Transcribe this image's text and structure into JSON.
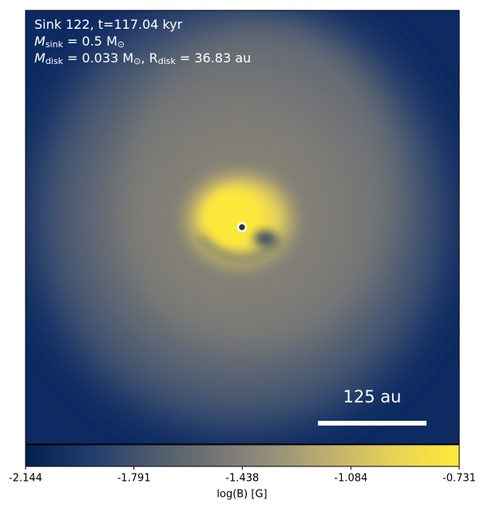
{
  "chart_data": {
    "type": "image",
    "annotations": [
      [
        {
          "t": "Sink 122, t=117.04 kyr"
        }
      ],
      [
        {
          "t": "M"
        },
        {
          "t": "sink",
          "sub": true
        },
        {
          "t": " = 0.5 M"
        },
        {
          "t": "⊙",
          "sub": true
        }
      ],
      [
        {
          "t": "M"
        },
        {
          "t": "disk",
          "sub": true
        },
        {
          "t": " = 0.033 M"
        },
        {
          "t": "⊙",
          "sub": true
        },
        {
          "t": ", R"
        },
        {
          "t": "disk",
          "sub": true
        },
        {
          "t": " = 36.83 au"
        }
      ]
    ],
    "scale_bar_label": "125 au",
    "colorbar": {
      "label": "log(B) [G]",
      "lim": [
        -2.144,
        -0.731
      ],
      "ticks": [
        -2.144,
        -1.791,
        -1.438,
        -1.084,
        -0.731
      ],
      "colors": [
        "#00204c",
        "#1f3b6e",
        "#4a5a6e",
        "#717274",
        "#97907a",
        "#c2b36d",
        "#ead455",
        "#fde93a"
      ]
    }
  }
}
